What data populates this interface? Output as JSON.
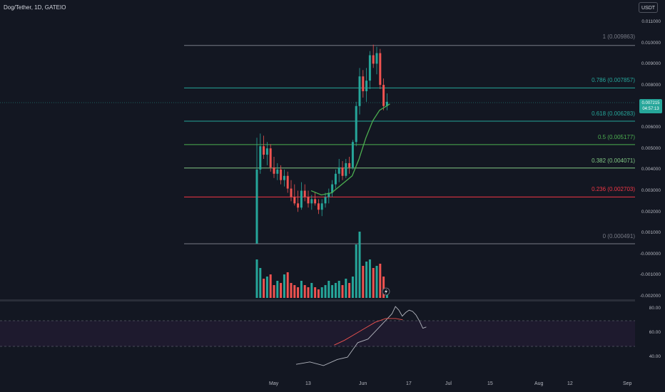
{
  "header": {
    "symbol_title": "Dog/Tether, 1D, GATEIO",
    "currency_button": "USDT"
  },
  "price_tag": {
    "price": "0.007215",
    "countdown": "04:57:13"
  },
  "price_axis": {
    "ticks": [
      "0.011000",
      "0.010000",
      "0.009000",
      "0.008000",
      "0.007000",
      "0.006000",
      "0.005000",
      "0.004000",
      "0.003000",
      "0.002000",
      "0.001000",
      "-0.000000",
      "-0.001000",
      "-0.002000"
    ]
  },
  "rsi_axis": {
    "ticks": [
      "80.00",
      "60.00",
      "40.00"
    ]
  },
  "time_axis": {
    "ticks": [
      "May",
      "13",
      "Jun",
      "17",
      "Jul",
      "15",
      "Aug",
      "12",
      "Sep"
    ]
  },
  "fib_levels": [
    {
      "label": "1 (0.009863)",
      "color": "#787b86"
    },
    {
      "label": "0.786 (0.007857)",
      "color": "#26a69a"
    },
    {
      "label": "0.618 (0.006283)",
      "color": "#26a69a"
    },
    {
      "label": "0.5 (0.005177)",
      "color": "#4caf50"
    },
    {
      "label": "0.382 (0.004071)",
      "color": "#81c784"
    },
    {
      "label": "0.236 (0.002703)",
      "color": "#f23645"
    },
    {
      "label": "0 (0.000491)",
      "color": "#787b86"
    }
  ],
  "colors": {
    "up": "#26a69a",
    "down": "#ef5350",
    "ma": "#4caf50",
    "rsi": "#b2b5be",
    "rsi_ma": "#ef5350"
  },
  "chart_data": {
    "type": "candlestick",
    "ylim": [
      -0.002,
      0.011
    ],
    "candles": [
      {
        "o": 0.0005,
        "h": 0.0055,
        "l": 0.0005,
        "c": 0.004
      },
      {
        "o": 0.004,
        "h": 0.0057,
        "l": 0.0038,
        "c": 0.0051
      },
      {
        "o": 0.0051,
        "h": 0.0056,
        "l": 0.0045,
        "c": 0.0047
      },
      {
        "o": 0.0047,
        "h": 0.0053,
        "l": 0.0042,
        "c": 0.005
      },
      {
        "o": 0.005,
        "h": 0.0052,
        "l": 0.0039,
        "c": 0.0041
      },
      {
        "o": 0.0041,
        "h": 0.0046,
        "l": 0.0036,
        "c": 0.0038
      },
      {
        "o": 0.0038,
        "h": 0.0043,
        "l": 0.0035,
        "c": 0.004
      },
      {
        "o": 0.004,
        "h": 0.0042,
        "l": 0.0033,
        "c": 0.0035
      },
      {
        "o": 0.0035,
        "h": 0.004,
        "l": 0.0032,
        "c": 0.0037
      },
      {
        "o": 0.0037,
        "h": 0.0039,
        "l": 0.0029,
        "c": 0.0031
      },
      {
        "o": 0.0031,
        "h": 0.0035,
        "l": 0.0025,
        "c": 0.0027
      },
      {
        "o": 0.0027,
        "h": 0.0033,
        "l": 0.0023,
        "c": 0.0024
      },
      {
        "o": 0.0024,
        "h": 0.003,
        "l": 0.002,
        "c": 0.0022
      },
      {
        "o": 0.0022,
        "h": 0.0034,
        "l": 0.0021,
        "c": 0.003
      },
      {
        "o": 0.003,
        "h": 0.0033,
        "l": 0.0025,
        "c": 0.0027
      },
      {
        "o": 0.0027,
        "h": 0.003,
        "l": 0.0022,
        "c": 0.0024
      },
      {
        "o": 0.0024,
        "h": 0.0028,
        "l": 0.0021,
        "c": 0.0026
      },
      {
        "o": 0.0026,
        "h": 0.0029,
        "l": 0.0023,
        "c": 0.0024
      },
      {
        "o": 0.0024,
        "h": 0.0026,
        "l": 0.0019,
        "c": 0.0021
      },
      {
        "o": 0.0021,
        "h": 0.0026,
        "l": 0.0018,
        "c": 0.0024
      },
      {
        "o": 0.0024,
        "h": 0.0029,
        "l": 0.0022,
        "c": 0.0027
      },
      {
        "o": 0.0027,
        "h": 0.0031,
        "l": 0.0024,
        "c": 0.0029
      },
      {
        "o": 0.0029,
        "h": 0.0035,
        "l": 0.0027,
        "c": 0.0033
      },
      {
        "o": 0.0033,
        "h": 0.004,
        "l": 0.0031,
        "c": 0.0038
      },
      {
        "o": 0.0038,
        "h": 0.0045,
        "l": 0.0034,
        "c": 0.0041
      },
      {
        "o": 0.0041,
        "h": 0.0044,
        "l": 0.0035,
        "c": 0.0037
      },
      {
        "o": 0.0037,
        "h": 0.0045,
        "l": 0.0036,
        "c": 0.0043
      },
      {
        "o": 0.0043,
        "h": 0.0046,
        "l": 0.0038,
        "c": 0.0041
      },
      {
        "o": 0.0041,
        "h": 0.0054,
        "l": 0.004,
        "c": 0.0053
      },
      {
        "o": 0.0053,
        "h": 0.0072,
        "l": 0.0051,
        "c": 0.007
      },
      {
        "o": 0.007,
        "h": 0.0088,
        "l": 0.0066,
        "c": 0.0084
      },
      {
        "o": 0.0084,
        "h": 0.0087,
        "l": 0.0074,
        "c": 0.0077
      },
      {
        "o": 0.0077,
        "h": 0.0088,
        "l": 0.0072,
        "c": 0.0082
      },
      {
        "o": 0.0082,
        "h": 0.0096,
        "l": 0.0078,
        "c": 0.0094
      },
      {
        "o": 0.0094,
        "h": 0.0099,
        "l": 0.0088,
        "c": 0.009
      },
      {
        "o": 0.009,
        "h": 0.0098,
        "l": 0.0085,
        "c": 0.0095
      },
      {
        "o": 0.0095,
        "h": 0.0097,
        "l": 0.0078,
        "c": 0.008
      },
      {
        "o": 0.008,
        "h": 0.0083,
        "l": 0.0068,
        "c": 0.007
      },
      {
        "o": 0.007,
        "h": 0.0076,
        "l": 0.0068,
        "c": 0.0072
      }
    ],
    "volume": [
      0.9,
      0.7,
      0.45,
      0.5,
      0.55,
      0.3,
      0.4,
      0.35,
      0.55,
      0.6,
      0.35,
      0.3,
      0.25,
      0.4,
      0.3,
      0.25,
      0.35,
      0.25,
      0.2,
      0.25,
      0.3,
      0.4,
      0.3,
      0.35,
      0.4,
      0.3,
      0.45,
      0.35,
      0.5,
      1.25,
      1.55,
      0.75,
      0.85,
      0.9,
      0.7,
      0.75,
      0.8,
      0.5,
      0.2
    ],
    "ma": [
      [
        15,
        0.003
      ],
      [
        18,
        0.0028
      ],
      [
        21,
        0.0029
      ],
      [
        24,
        0.0033
      ],
      [
        27,
        0.0037
      ],
      [
        29,
        0.0045
      ],
      [
        31,
        0.0055
      ],
      [
        33,
        0.0063
      ],
      [
        35,
        0.0068
      ],
      [
        37,
        0.007
      ],
      [
        38,
        0.0071
      ]
    ],
    "rsi": [
      [
        0,
        34
      ],
      [
        4,
        36
      ],
      [
        8,
        33
      ],
      [
        12,
        38
      ],
      [
        15,
        40
      ],
      [
        18,
        52
      ],
      [
        21,
        55
      ],
      [
        23,
        61
      ],
      [
        26,
        70
      ],
      [
        28,
        76
      ],
      [
        29,
        82
      ],
      [
        30,
        79
      ],
      [
        31,
        74
      ],
      [
        32,
        77
      ],
      [
        33,
        79
      ],
      [
        34,
        78
      ],
      [
        35,
        75
      ],
      [
        36,
        70
      ],
      [
        37,
        64
      ],
      [
        38,
        65
      ]
    ],
    "rsi_ma": [
      [
        18,
        50
      ],
      [
        21,
        54
      ],
      [
        24,
        59
      ],
      [
        27,
        64
      ],
      [
        30,
        69
      ],
      [
        33,
        72
      ],
      [
        36,
        72
      ],
      [
        38,
        71
      ]
    ],
    "rsi_ylim": [
      30,
      85
    ]
  }
}
